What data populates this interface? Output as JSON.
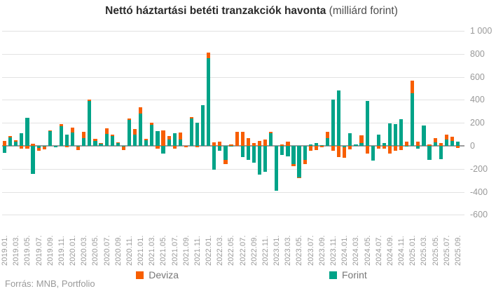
{
  "title": {
    "bold": "Nettó háztartási betéti tranzakciók havonta",
    "normal": " (milliárd forint)"
  },
  "footer": {
    "source": "Forrás: MNB, Portfolio"
  },
  "legend": [
    {
      "label": "Deviza",
      "color": "#F75E00"
    },
    {
      "label": "Forint",
      "color": "#00A388"
    }
  ],
  "colors": {
    "deviza": "#F75E00",
    "forint": "#00A388",
    "gridline": "#e2e2e2",
    "zero_line": "#9c9c9c",
    "axis_text": "#999999",
    "title_text": "#2b2b2b"
  },
  "chart_data": {
    "type": "bar",
    "stacked": true,
    "stack_order": [
      "Forint",
      "Deviza"
    ],
    "title": "Nettó háztartási betéti tranzakciók havonta (milliárd forint)",
    "xlabel": "",
    "ylabel": "",
    "ylim": [
      -600,
      1000
    ],
    "yticks": [
      1000,
      800,
      600,
      400,
      200,
      0,
      -200,
      -400,
      -600
    ],
    "ytick_labels": [
      "1 000",
      "800",
      "600",
      "400",
      "200",
      "0",
      "-200",
      "-400",
      "-600"
    ],
    "grid": true,
    "legend_position": "bottom",
    "x_label_every": 2,
    "categories": [
      "2019.01.",
      "2019.02.",
      "2019.03.",
      "2019.04.",
      "2019.05.",
      "2019.06.",
      "2019.07.",
      "2019.08.",
      "2019.09.",
      "2019.10.",
      "2019.11.",
      "2019.12.",
      "2020.01.",
      "2020.02.",
      "2020.03.",
      "2020.04.",
      "2020.05.",
      "2020.06.",
      "2020.07.",
      "2020.08.",
      "2020.09.",
      "2020.10.",
      "2020.11.",
      "2020.12.",
      "2021.01.",
      "2021.02.",
      "2021.03.",
      "2021.04.",
      "2021.05.",
      "2021.06.",
      "2021.07.",
      "2021.08.",
      "2021.09.",
      "2021.10.",
      "2021.11.",
      "2021.12.",
      "2022.01.",
      "2022.02.",
      "2022.03.",
      "2022.04.",
      "2022.05.",
      "2022.06.",
      "2022.07.",
      "2022.08.",
      "2022.09.",
      "2022.10.",
      "2022.11.",
      "2022.12.",
      "2023.01.",
      "2023.02.",
      "2023.03.",
      "2023.04.",
      "2023.05.",
      "2023.06.",
      "2023.07.",
      "2023.08.",
      "2023.09.",
      "2023.10.",
      "2023.11.",
      "2023.12.",
      "2024.01.",
      "2024.02.",
      "2024.03.",
      "2024.04.",
      "2024.05.",
      "2024.06.",
      "2024.07.",
      "2024.08.",
      "2024.09.",
      "2024.10.",
      "2024.11.",
      "2024.12.",
      "2025.01.",
      "2025.02.",
      "2025.03.",
      "2025.04.",
      "2025.05.",
      "2025.06.",
      "2025.07.",
      "2025.08.",
      "2025.09."
    ],
    "series": [
      {
        "name": "Deviza",
        "color": "#F75E00",
        "values": [
          45,
          8,
          12,
          -22,
          -25,
          20,
          -25,
          -26,
          5,
          0,
          20,
          -15,
          45,
          -30,
          55,
          15,
          20,
          5,
          48,
          10,
          5,
          -32,
          12,
          50,
          55,
          10,
          20,
          -25,
          135,
          30,
          -25,
          60,
          -15,
          10,
          -15,
          0,
          50,
          30,
          35,
          -40,
          12,
          125,
          120,
          65,
          27,
          43,
          57,
          12,
          0,
          12,
          37,
          -20,
          -7,
          -40,
          -41,
          -37,
          -13,
          55,
          -41,
          -95,
          -90,
          -31,
          0,
          69,
          -70,
          0,
          -22,
          -25,
          -70,
          -41,
          -35,
          33,
          110,
          37,
          0,
          12,
          35,
          24,
          39,
          37,
          -16
        ]
      },
      {
        "name": "Forint",
        "color": "#00A388",
        "values": [
          -60,
          75,
          38,
          110,
          245,
          -245,
          -18,
          -4,
          130,
          -12,
          170,
          95,
          115,
          -6,
          70,
          390,
          42,
          20,
          105,
          85,
          25,
          -5,
          225,
          95,
          280,
          50,
          180,
          130,
          -70,
          57,
          112,
          57,
          0,
          240,
          200,
          355,
          760,
          -205,
          -40,
          -120,
          -5,
          0,
          -95,
          -120,
          -145,
          -247,
          -227,
          110,
          -390,
          -80,
          -94,
          -158,
          -275,
          -120,
          12,
          23,
          5,
          66,
          404,
          482,
          -15,
          112,
          10,
          24,
          390,
          -130,
          96,
          25,
          195,
          190,
          230,
          3,
          460,
          -22,
          175,
          -120,
          31,
          -114,
          57,
          43,
          35
        ]
      }
    ]
  }
}
